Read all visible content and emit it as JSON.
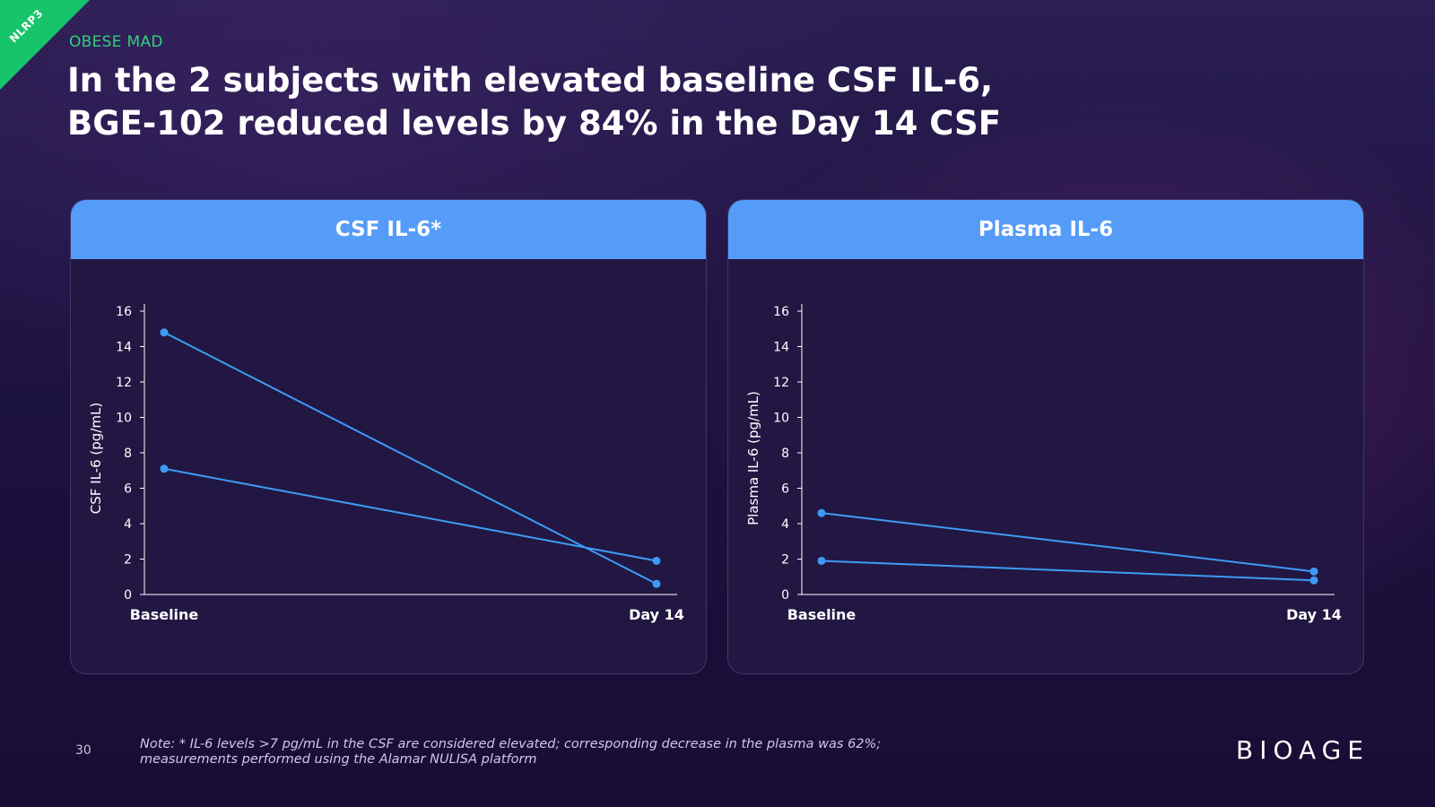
{
  "corner_tag": "NLRP3",
  "eyebrow": "OBESE MAD",
  "title": {
    "line1": "In the 2 subjects with elevated baseline CSF IL-6,",
    "line2": "BGE-102 reduced levels by 84% in the Day 14 CSF"
  },
  "colors": {
    "accent_green": "#18c46a",
    "header_blue": "#559cf9",
    "series_line": "#3d9bf5",
    "background": "#1d1240"
  },
  "chart_data": [
    {
      "type": "line",
      "panel_title": "CSF IL-6*",
      "categories": [
        "Baseline",
        "Day 14"
      ],
      "series": [
        {
          "values": [
            14.8,
            0.6
          ]
        },
        {
          "values": [
            7.1,
            1.9
          ]
        }
      ],
      "ylabel": "CSF IL-6 (pg/mL)",
      "ylim": [
        0,
        16
      ],
      "yticks": [
        "0",
        "2",
        "4",
        "6",
        "8",
        "10",
        "12",
        "14",
        "16"
      ],
      "grid": false
    },
    {
      "type": "line",
      "panel_title": "Plasma IL-6",
      "categories": [
        "Baseline",
        "Day 14"
      ],
      "series": [
        {
          "values": [
            4.6,
            1.3
          ]
        },
        {
          "values": [
            1.9,
            0.8
          ]
        }
      ],
      "ylabel": "Plasma IL-6 (pg/mL)",
      "ylim": [
        0,
        16
      ],
      "yticks": [
        "0",
        "2",
        "4",
        "6",
        "8",
        "10",
        "12",
        "14",
        "16"
      ],
      "grid": false
    }
  ],
  "page_number": "30",
  "footnote": {
    "line1": "Note: * IL-6 levels >7 pg/mL in the CSF are considered elevated; corresponding decrease in the plasma was 62%;",
    "line2": "measurements performed using the Alamar NULISA platform"
  },
  "brand": "BIOAGE"
}
